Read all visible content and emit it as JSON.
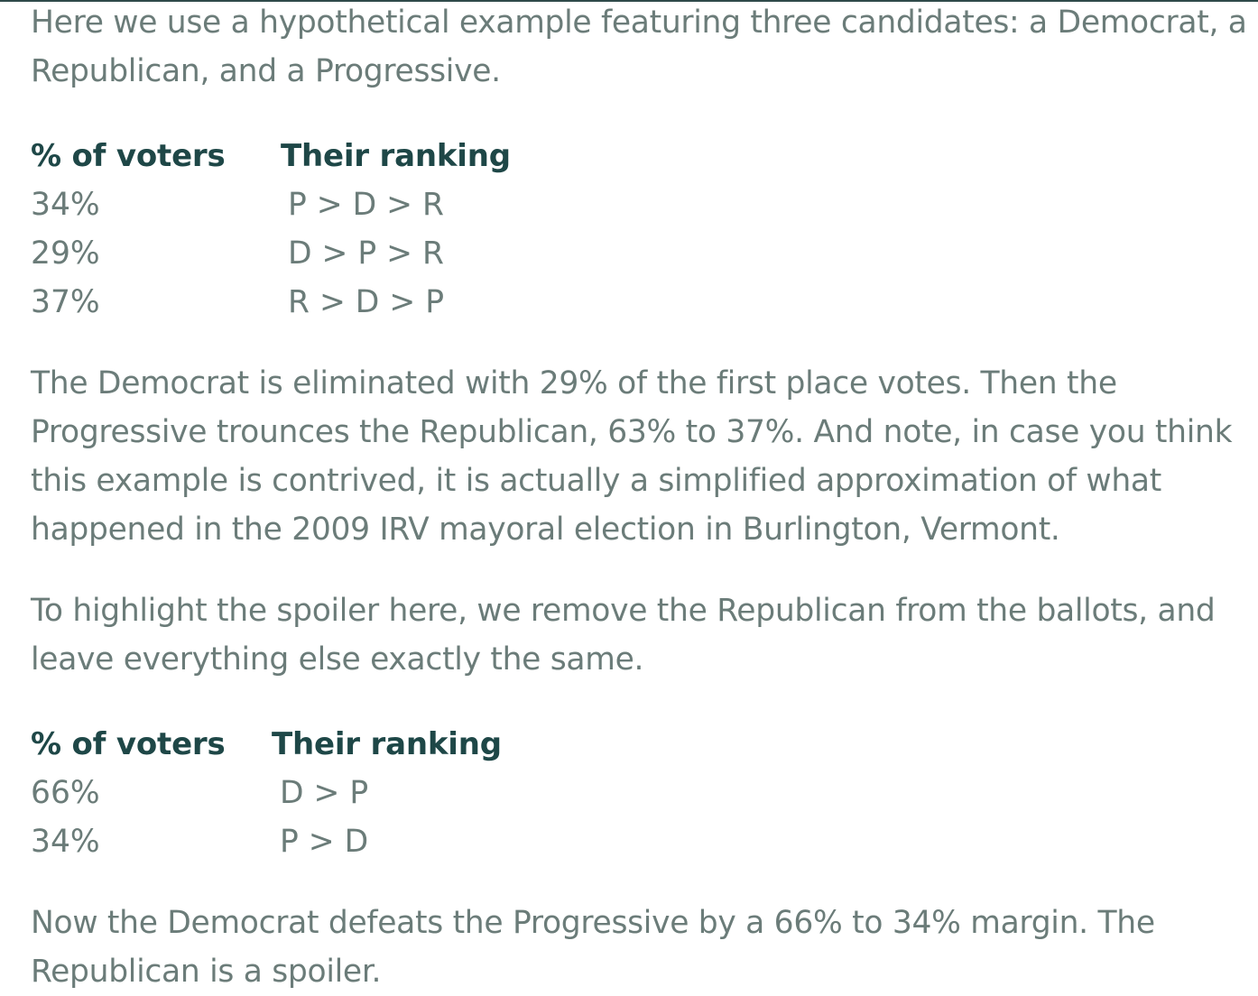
{
  "intro": "Here we use a hypothetical example featuring three candidates: a Democrat, a Republican, and a Progressive.",
  "table1": {
    "headers": [
      "% of voters",
      "Their ranking"
    ],
    "rows": [
      {
        "pct": "34%",
        "ranking": "P > D > R"
      },
      {
        "pct": "29%",
        "ranking": "D > P > R"
      },
      {
        "pct": "37%",
        "ranking": "R > D > P"
      }
    ]
  },
  "para2": "The Democrat is eliminated with 29% of the first place votes. Then the Progressive trounces the Republican, 63% to 37%. And note, in case you think this example is contrived, it is actually a simplified approximation of what happened in the 2009 IRV mayoral election in Burlington, Vermont.",
  "para3": "To highlight the spoiler here, we remove the Republican from the ballots, and leave everything else exactly the same.",
  "table2": {
    "headers": [
      "% of voters",
      "Their ranking"
    ],
    "rows": [
      {
        "pct": "66%",
        "ranking": "D > P"
      },
      {
        "pct": "34%",
        "ranking": "P > D"
      }
    ]
  },
  "para4": "Now the Democrat defeats the Progressive by a 66% to 34% margin. The Republican is a spoiler.",
  "colors": {
    "body_text": "#6b7c79",
    "header_text": "#1e4747",
    "top_rule": "#2f4a4a"
  }
}
